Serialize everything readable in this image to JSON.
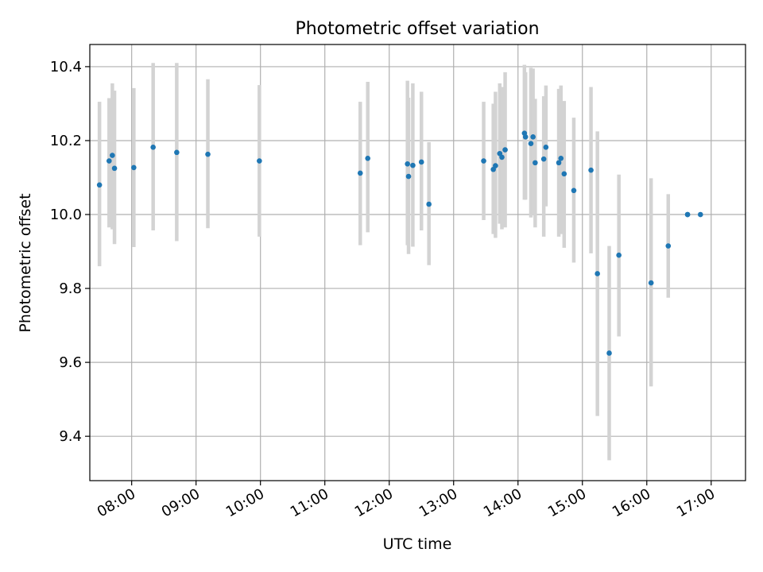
{
  "chart_data": {
    "type": "scatter",
    "title": "Photometric offset variation",
    "xlabel": "UTC time",
    "ylabel": "Photometric offset",
    "x_ticks": [
      "08:00",
      "09:00",
      "10:00",
      "11:00",
      "12:00",
      "13:00",
      "14:00",
      "15:00",
      "16:00",
      "17:00"
    ],
    "y_ticks": [
      "9.4",
      "9.6",
      "9.8",
      "10.0",
      "10.2",
      "10.4"
    ],
    "xlim": [
      "07:21",
      "17:32"
    ],
    "ylim": [
      9.28,
      10.46
    ],
    "grid": true,
    "colors": {
      "point": "#1f77b4",
      "errorbar": "#d3d3d3",
      "grid": "#b0b0b0"
    },
    "series": [
      {
        "x": [
          "07:30",
          "07:39",
          "07:42",
          "07:44",
          "08:02",
          "08:20",
          "08:42",
          "09:11",
          "09:59",
          "11:33",
          "11:40",
          "12:17",
          "12:18",
          "12:22",
          "12:30",
          "12:37",
          "13:28",
          "13:37",
          "13:39",
          "13:43",
          "13:45",
          "13:48",
          "14:06",
          "14:07",
          "14:12",
          "14:14",
          "14:16",
          "14:24",
          "14:26",
          "14:38",
          "14:40",
          "14:43",
          "14:52",
          "15:08",
          "15:14",
          "15:25",
          "15:34",
          "16:04",
          "16:20",
          "16:38",
          "16:38",
          "16:50"
        ],
        "y": [
          10.08,
          10.145,
          10.16,
          10.125,
          10.127,
          10.182,
          10.168,
          10.163,
          10.145,
          10.112,
          10.152,
          10.137,
          10.103,
          10.133,
          10.142,
          10.028,
          10.145,
          10.122,
          10.132,
          10.165,
          10.155,
          10.175,
          10.22,
          10.21,
          10.192,
          10.21,
          10.14,
          10.15,
          10.182,
          10.14,
          10.152,
          10.11,
          10.065,
          10.12,
          9.84,
          9.625,
          9.89,
          9.815,
          9.915,
          10.0,
          10.0,
          10.0
        ],
        "yerr_low": [
          0.22,
          0.18,
          0.2,
          0.205,
          0.215,
          0.225,
          0.24,
          0.2,
          0.205,
          0.195,
          0.2,
          0.22,
          0.21,
          0.22,
          0.185,
          0.165,
          0.16,
          0.175,
          0.195,
          0.19,
          0.195,
          0.21,
          0.18,
          0.17,
          0.2,
          0.21,
          0.175,
          0.21,
          0.16,
          0.2,
          0.205,
          0.2,
          0.195,
          0.225,
          0.385,
          0.29,
          0.22,
          0.28,
          0.14,
          0.0,
          0.0,
          0.0
        ],
        "yerr_high": [
          0.225,
          0.17,
          0.195,
          0.21,
          0.215,
          0.228,
          0.242,
          0.203,
          0.205,
          0.193,
          0.207,
          0.225,
          0.213,
          0.222,
          0.19,
          0.168,
          0.16,
          0.178,
          0.2,
          0.19,
          0.19,
          0.21,
          0.185,
          0.175,
          0.205,
          0.185,
          0.173,
          0.17,
          0.167,
          0.2,
          0.197,
          0.197,
          0.197,
          0.225,
          0.385,
          0.29,
          0.218,
          0.283,
          0.14,
          0.0,
          0.0,
          0.0
        ]
      }
    ]
  }
}
